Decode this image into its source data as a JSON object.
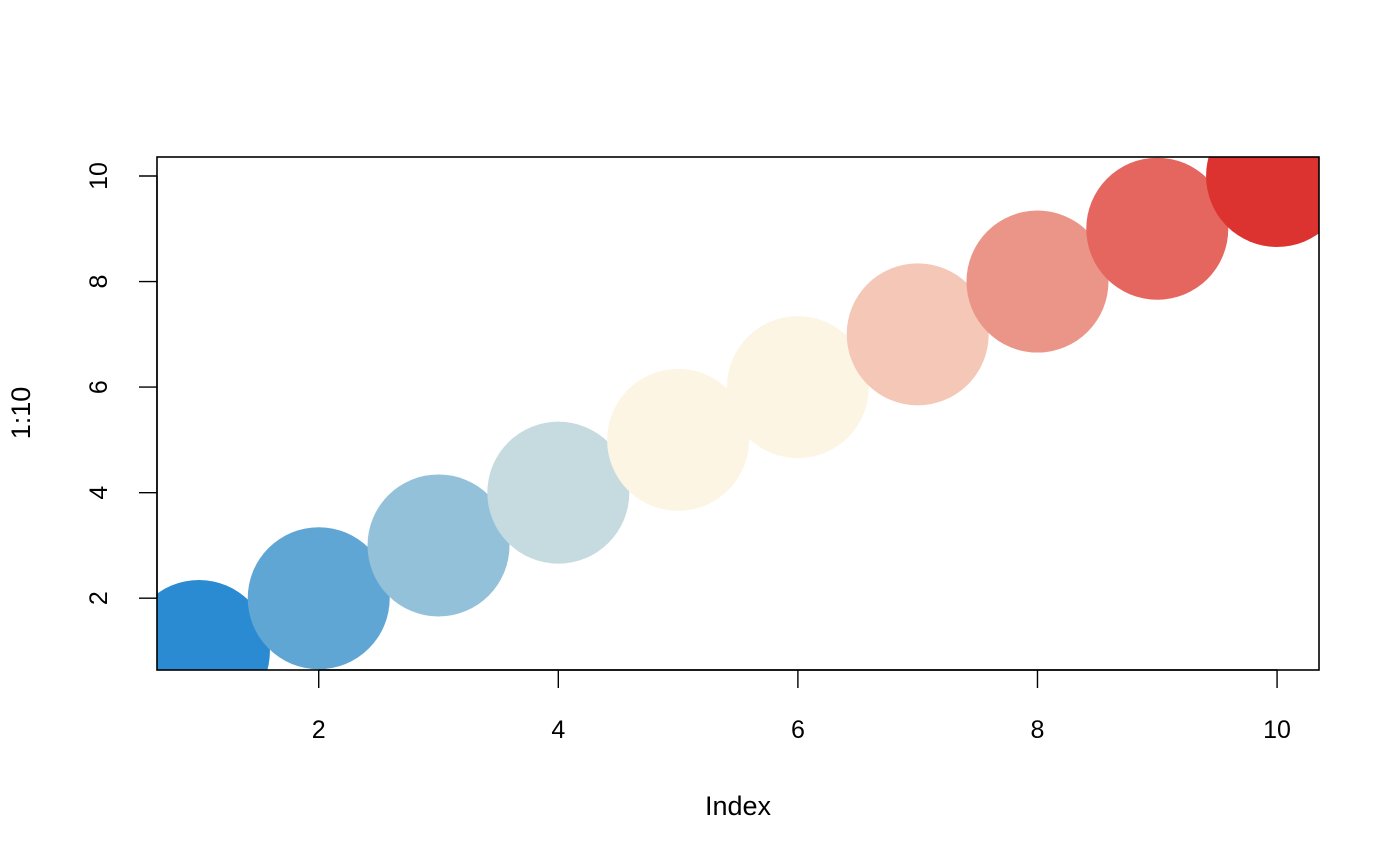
{
  "chart_data": {
    "type": "scatter",
    "title": "",
    "xlabel": "Index",
    "ylabel": "1:10",
    "xlim": [
      0.65,
      10.35
    ],
    "ylim": [
      0.64,
      10.36
    ],
    "x_ticks": [
      2,
      4,
      6,
      8,
      10
    ],
    "y_ticks": [
      2,
      4,
      6,
      8,
      10
    ],
    "grid": false,
    "legend": "none",
    "series": [
      {
        "x": [
          1,
          2,
          3,
          4,
          5,
          6,
          7,
          8,
          9,
          10
        ],
        "values": [
          1,
          2,
          3,
          4,
          5,
          6,
          7,
          8,
          9,
          10
        ],
        "colors": [
          "#2a8bd3",
          "#5fa6d5",
          "#93c1da",
          "#c6dbe0",
          "#fdf5e4",
          "#fdf5e4",
          "#f4c7b7",
          "#eb9588",
          "#e4665e",
          "#dd3330"
        ]
      }
    ]
  }
}
